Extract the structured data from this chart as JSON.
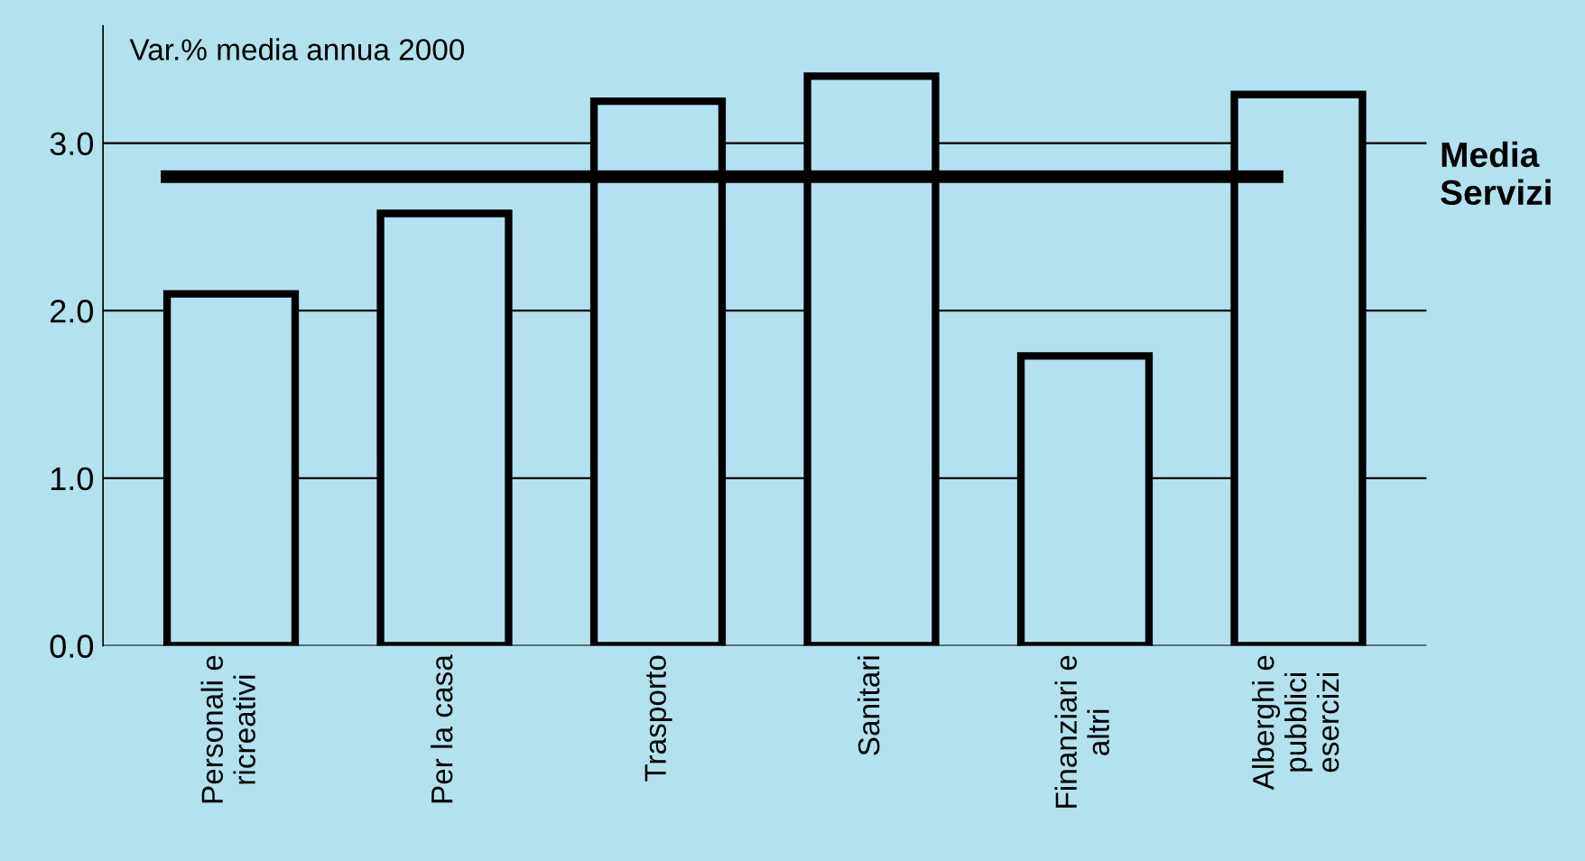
{
  "chart_data": {
    "type": "bar",
    "title": "Var.% media annua 2000",
    "categories": [
      "Personali e\nricreativi",
      "Per la casa",
      "Trasporto",
      "Sanitari",
      "Finanziari e\naltri",
      "Alberghi e\npubblici\nesercizi"
    ],
    "values": [
      2.1,
      2.58,
      3.25,
      3.4,
      1.73,
      3.29
    ],
    "color": "#b3e1f0",
    "ylim": [
      0,
      3.7
    ],
    "yticks": [
      {
        "value": 0,
        "label": "0.0"
      },
      {
        "value": 1,
        "label": "1.0"
      },
      {
        "value": 2,
        "label": "2.0"
      },
      {
        "value": 3,
        "label": "3.0"
      }
    ],
    "grid": "y",
    "ref_lines": [
      {
        "axis": "y",
        "value": 2.8,
        "label": "Media\nServizi",
        "color": "#000000"
      }
    ]
  }
}
